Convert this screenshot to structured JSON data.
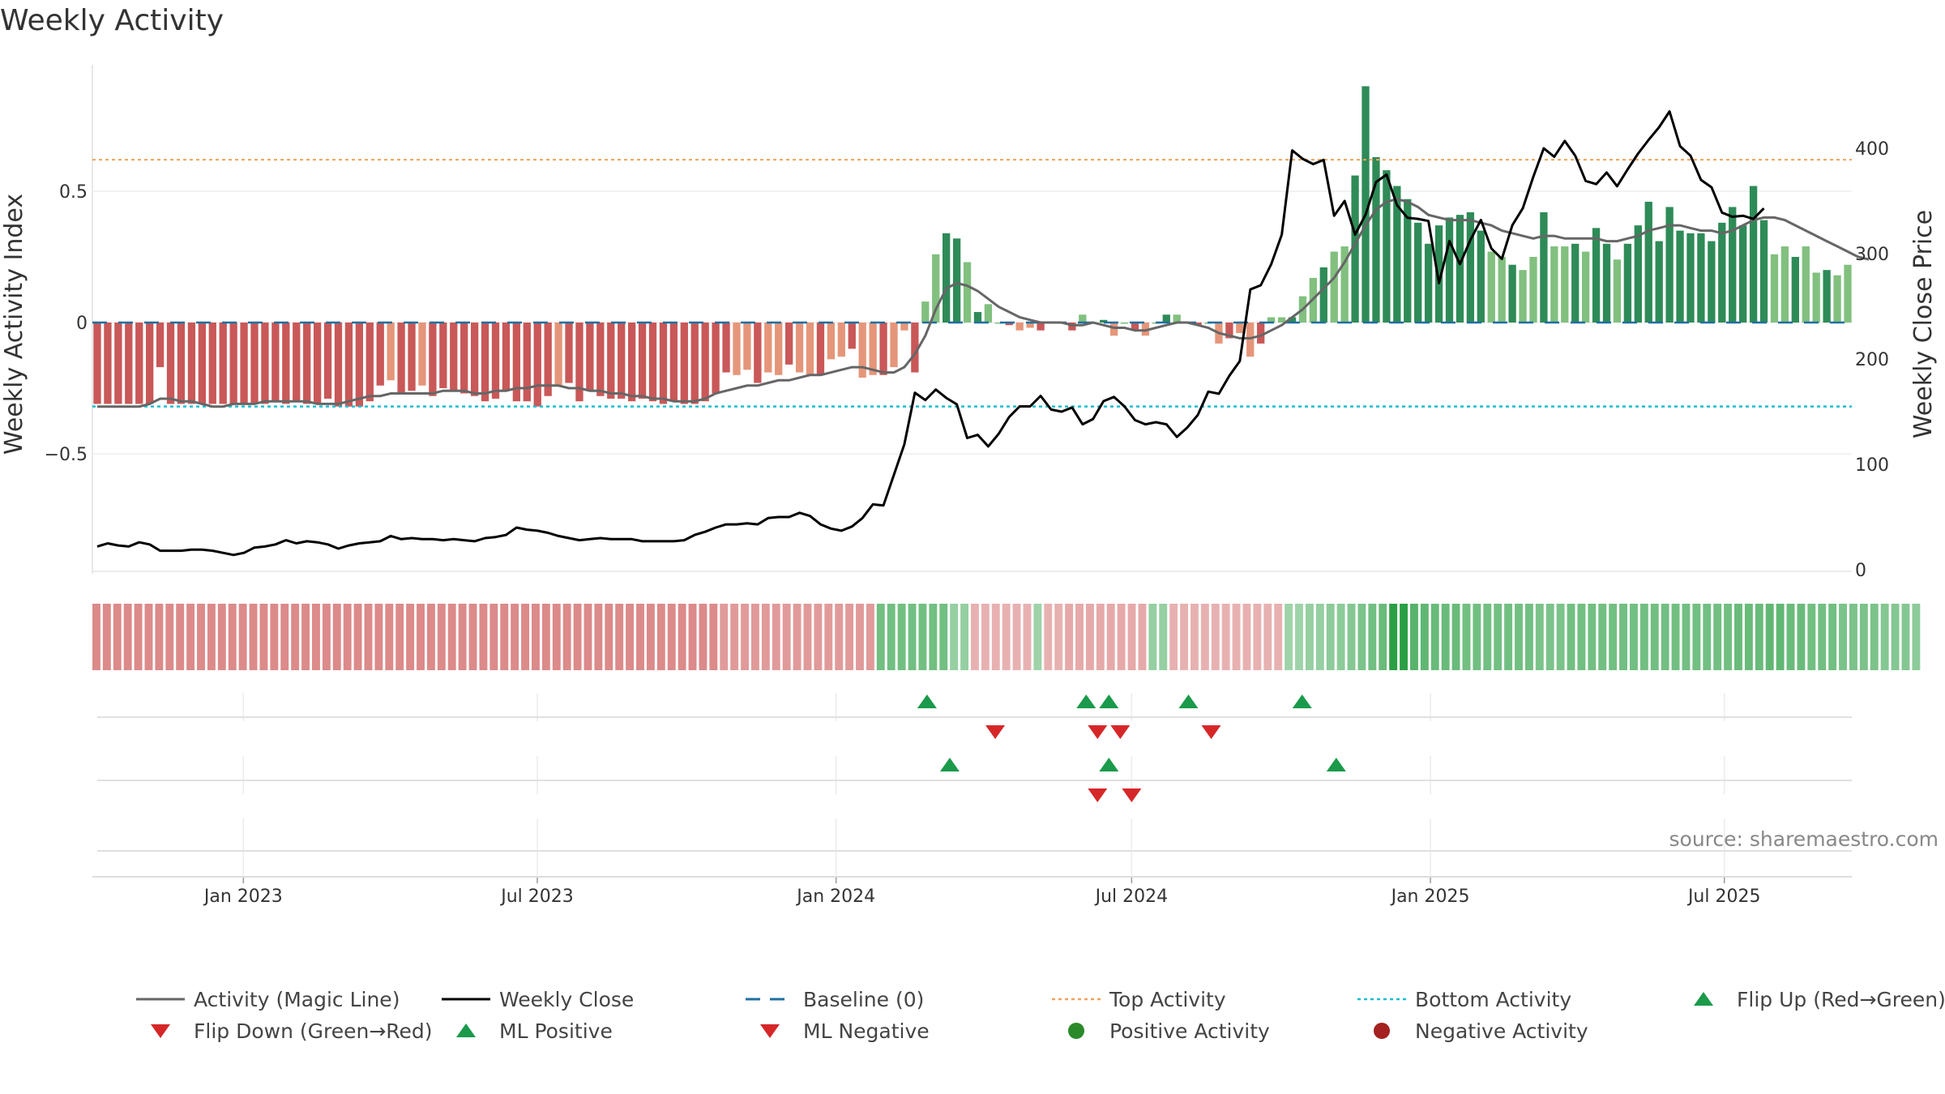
{
  "chart_data": {
    "type": "bar",
    "title": "Weekly Activity",
    "source": "source: sharemaestro.com",
    "y_left": {
      "label": "Weekly Activity Index",
      "ticks": [
        -0.5,
        0,
        0.5
      ],
      "tick_labels": [
        "−0.5",
        "0",
        "0.5"
      ],
      "range": [
        -0.93,
        0.9
      ]
    },
    "y_right": {
      "label": "Weekly Close Price",
      "ticks": [
        0,
        100,
        200,
        300,
        400
      ],
      "tick_labels": [
        "0",
        "100",
        "200",
        "300",
        "400"
      ],
      "range": [
        0,
        460
      ]
    },
    "x_axis": {
      "start": "2022-10-03",
      "end": "2025-09-15",
      "ticks": [
        "2023-01-01",
        "2023-07-01",
        "2024-01-01",
        "2024-07-01",
        "2025-01-01",
        "2025-07-01"
      ],
      "tick_labels": [
        "Jan 2023",
        "Jul 2023",
        "Jan 2024",
        "Jul 2024",
        "Jan 2025",
        "Jul 2025"
      ]
    },
    "reference_lines": {
      "top_activity": 0.62,
      "bottom_activity": -0.32,
      "baseline": 0
    },
    "activity": [
      -0.31,
      -0.31,
      -0.31,
      -0.31,
      -0.31,
      -0.31,
      -0.17,
      -0.31,
      -0.31,
      -0.31,
      -0.31,
      -0.31,
      -0.31,
      -0.31,
      -0.31,
      -0.31,
      -0.31,
      -0.3,
      -0.31,
      -0.3,
      -0.31,
      -0.31,
      -0.29,
      -0.32,
      -0.32,
      -0.32,
      -0.3,
      -0.24,
      -0.22,
      -0.27,
      -0.26,
      -0.24,
      -0.28,
      -0.25,
      -0.26,
      -0.27,
      -0.28,
      -0.3,
      -0.29,
      -0.26,
      -0.3,
      -0.3,
      -0.32,
      -0.28,
      -0.24,
      -0.23,
      -0.3,
      -0.26,
      -0.28,
      -0.29,
      -0.29,
      -0.3,
      -0.29,
      -0.3,
      -0.31,
      -0.3,
      -0.31,
      -0.31,
      -0.3,
      -0.27,
      -0.19,
      -0.2,
      -0.18,
      -0.23,
      -0.19,
      -0.2,
      -0.16,
      -0.19,
      -0.2,
      -0.2,
      -0.14,
      -0.13,
      -0.1,
      -0.21,
      -0.2,
      -0.2,
      -0.17,
      -0.03,
      -0.19,
      0.08,
      0.26,
      0.34,
      0.32,
      0.23,
      0.04,
      0.07,
      0.0,
      -0.01,
      -0.03,
      -0.02,
      -0.03,
      0.0,
      0.0,
      -0.03,
      0.03,
      0.0,
      0.01,
      -0.05,
      0.0,
      -0.03,
      -0.05,
      0.0,
      0.03,
      0.03,
      0.0,
      -0.01,
      0.0,
      -0.08,
      -0.06,
      -0.04,
      -0.13,
      -0.08,
      0.02,
      0.02,
      0.02,
      0.1,
      0.17,
      0.21,
      0.27,
      0.29,
      0.56,
      0.9,
      0.63,
      0.58,
      0.52,
      0.47,
      0.38,
      0.3,
      0.37,
      0.4,
      0.41,
      0.42,
      0.35,
      0.27,
      0.25,
      0.22,
      0.2,
      0.25,
      0.42,
      0.29,
      0.29,
      0.3,
      0.27,
      0.36,
      0.3,
      0.24,
      0.3,
      0.37,
      0.46,
      0.31,
      0.44,
      0.35,
      0.34,
      0.34,
      0.31,
      0.38,
      0.44,
      0.37,
      0.52,
      0.39,
      0.26,
      0.29,
      0.25,
      0.29,
      0.19,
      0.2,
      0.18,
      0.22
    ],
    "magic_line": [
      -0.32,
      -0.32,
      -0.32,
      -0.32,
      -0.32,
      -0.31,
      -0.29,
      -0.29,
      -0.3,
      -0.3,
      -0.31,
      -0.32,
      -0.32,
      -0.31,
      -0.31,
      -0.31,
      -0.3,
      -0.3,
      -0.3,
      -0.3,
      -0.3,
      -0.31,
      -0.31,
      -0.31,
      -0.3,
      -0.29,
      -0.28,
      -0.28,
      -0.27,
      -0.27,
      -0.27,
      -0.27,
      -0.27,
      -0.26,
      -0.26,
      -0.26,
      -0.27,
      -0.27,
      -0.26,
      -0.26,
      -0.25,
      -0.25,
      -0.24,
      -0.24,
      -0.24,
      -0.25,
      -0.25,
      -0.26,
      -0.26,
      -0.27,
      -0.27,
      -0.28,
      -0.28,
      -0.29,
      -0.29,
      -0.3,
      -0.3,
      -0.3,
      -0.29,
      -0.27,
      -0.26,
      -0.25,
      -0.24,
      -0.24,
      -0.23,
      -0.22,
      -0.22,
      -0.21,
      -0.2,
      -0.2,
      -0.19,
      -0.18,
      -0.17,
      -0.17,
      -0.18,
      -0.19,
      -0.19,
      -0.17,
      -0.12,
      -0.05,
      0.05,
      0.13,
      0.15,
      0.14,
      0.12,
      0.09,
      0.06,
      0.04,
      0.02,
      0.01,
      0.0,
      0.0,
      0.0,
      -0.01,
      -0.01,
      0.0,
      -0.01,
      -0.02,
      -0.02,
      -0.03,
      -0.03,
      -0.02,
      -0.01,
      0.0,
      0.0,
      -0.01,
      -0.02,
      -0.04,
      -0.05,
      -0.06,
      -0.06,
      -0.05,
      -0.03,
      -0.01,
      0.02,
      0.05,
      0.09,
      0.13,
      0.17,
      0.23,
      0.3,
      0.37,
      0.43,
      0.46,
      0.47,
      0.46,
      0.44,
      0.41,
      0.4,
      0.39,
      0.39,
      0.39,
      0.38,
      0.37,
      0.35,
      0.34,
      0.33,
      0.32,
      0.33,
      0.33,
      0.32,
      0.32,
      0.32,
      0.32,
      0.31,
      0.31,
      0.32,
      0.33,
      0.35,
      0.36,
      0.37,
      0.37,
      0.36,
      0.35,
      0.35,
      0.34,
      0.35,
      0.37,
      0.39,
      0.4,
      0.4,
      0.39,
      0.37,
      0.35,
      0.33,
      0.31,
      0.29,
      0.27,
      0.25,
      0.24
    ],
    "close": [
      22,
      25,
      23,
      22,
      26,
      24,
      18,
      18,
      18,
      19,
      19,
      18,
      16,
      14,
      16,
      21,
      22,
      24,
      28,
      25,
      27,
      26,
      24,
      20,
      23,
      25,
      26,
      27,
      32,
      29,
      30,
      29,
      29,
      28,
      29,
      28,
      27,
      30,
      31,
      33,
      40,
      38,
      37,
      35,
      32,
      30,
      28,
      29,
      30,
      29,
      29,
      29,
      27,
      27,
      27,
      27,
      28,
      33,
      36,
      40,
      43,
      43,
      44,
      43,
      49,
      50,
      50,
      54,
      51,
      43,
      39,
      37,
      41,
      49,
      62,
      61,
      90,
      119,
      168,
      161,
      171,
      163,
      157,
      125,
      128,
      117,
      129,
      145,
      155,
      155,
      165,
      152,
      150,
      154,
      138,
      143,
      160,
      164,
      155,
      142,
      138,
      140,
      138,
      126,
      135,
      147,
      169,
      167,
      184,
      198,
      266,
      270,
      290,
      318,
      398,
      390,
      385,
      389,
      336,
      350,
      318,
      337,
      368,
      375,
      346,
      334,
      333,
      331,
      272,
      312,
      290,
      313,
      332,
      305,
      295,
      327,
      343,
      373,
      400,
      392,
      407,
      393,
      369,
      366,
      377,
      364,
      380,
      395,
      408,
      420,
      435,
      402,
      393,
      370,
      363,
      339,
      335,
      336,
      333,
      343
    ],
    "color_band": [
      -0.45,
      -0.45,
      -0.45,
      -0.45,
      -0.45,
      -0.45,
      -0.45,
      -0.45,
      -0.45,
      -0.45,
      -0.45,
      -0.45,
      -0.45,
      -0.45,
      -0.45,
      -0.45,
      -0.45,
      -0.45,
      -0.45,
      -0.45,
      -0.45,
      -0.45,
      -0.45,
      -0.45,
      -0.45,
      -0.45,
      -0.45,
      -0.45,
      -0.45,
      -0.45,
      -0.45,
      -0.45,
      -0.45,
      -0.45,
      -0.45,
      -0.45,
      -0.45,
      -0.45,
      -0.45,
      -0.45,
      -0.45,
      -0.45,
      -0.45,
      -0.45,
      -0.45,
      -0.45,
      -0.45,
      -0.45,
      -0.45,
      -0.45,
      -0.45,
      -0.45,
      -0.45,
      -0.45,
      -0.45,
      -0.45,
      -0.45,
      -0.45,
      -0.45,
      -0.45,
      -0.35,
      -0.35,
      -0.35,
      -0.35,
      -0.35,
      -0.35,
      -0.35,
      -0.35,
      -0.35,
      -0.35,
      -0.35,
      -0.35,
      -0.35,
      -0.35,
      -0.35,
      0.5,
      0.5,
      0.5,
      0.5,
      0.5,
      0.5,
      0.5,
      0.3,
      0.3,
      -0.2,
      -0.2,
      -0.2,
      -0.2,
      -0.2,
      -0.2,
      0.25,
      -0.2,
      -0.2,
      -0.25,
      -0.25,
      -0.25,
      -0.25,
      -0.25,
      -0.25,
      -0.25,
      -0.25,
      0.3,
      0.3,
      -0.2,
      -0.2,
      -0.2,
      -0.2,
      -0.2,
      -0.2,
      -0.2,
      -0.2,
      -0.2,
      -0.2,
      -0.2,
      0.25,
      0.25,
      0.3,
      0.3,
      0.35,
      0.35,
      0.4,
      0.45,
      0.5,
      0.55,
      0.9,
      0.9,
      0.65,
      0.6,
      0.55,
      0.55,
      0.55,
      0.5,
      0.5,
      0.5,
      0.5,
      0.5,
      0.5,
      0.5,
      0.45,
      0.45,
      0.45,
      0.5,
      0.5,
      0.5,
      0.5,
      0.5,
      0.5,
      0.5,
      0.5,
      0.5,
      0.5,
      0.5,
      0.5,
      0.5,
      0.5,
      0.5,
      0.5,
      0.55,
      0.55,
      0.55,
      0.6,
      0.6,
      0.55,
      0.55,
      0.5,
      0.5,
      0.5,
      0.45,
      0.45,
      0.45,
      0.45,
      0.4,
      0.4,
      0.4,
      0.35
    ],
    "flip_up": [
      "2024-02-26",
      "2024-06-03",
      "2024-06-17",
      "2024-08-05",
      "2024-10-14"
    ],
    "flip_down": [
      "2024-04-08",
      "2024-06-10",
      "2024-06-24",
      "2024-08-19"
    ],
    "ml_positive": [
      "2024-03-11",
      "2024-06-17",
      "2024-11-04"
    ],
    "ml_negative": [
      "2024-06-10",
      "2024-07-01"
    ],
    "legend": [
      {
        "label": "Activity (Magic Line)",
        "marker": "line",
        "color": "#666666"
      },
      {
        "label": "Weekly Close",
        "marker": "line",
        "color": "#000000"
      },
      {
        "label": "Baseline (0)",
        "marker": "dash",
        "color": "#1f6fa0"
      },
      {
        "label": "Top Activity",
        "marker": "dot-line",
        "color": "#f0a35a"
      },
      {
        "label": "Bottom Activity",
        "marker": "dot-line",
        "color": "#17becf"
      },
      {
        "label": "Flip Up (Red→Green)",
        "marker": "triangle-up",
        "color": "#1a9a4a"
      },
      {
        "label": "Flip Down (Green→Red)",
        "marker": "triangle-down",
        "color": "#d62728"
      },
      {
        "label": "ML Positive",
        "marker": "triangle-up",
        "color": "#1a9a4a"
      },
      {
        "label": "ML Negative",
        "marker": "triangle-down",
        "color": "#d62728"
      },
      {
        "label": "Positive Activity",
        "marker": "circle",
        "color": "#2a8a2a"
      },
      {
        "label": "Negative Activity",
        "marker": "circle",
        "color": "#a52020"
      }
    ],
    "colors": {
      "pos_dark": "#2e8b57",
      "pos_light": "#82c07f",
      "neg_dark": "#c95858",
      "neg_light": "#e5967a",
      "magic": "#666666",
      "close": "#000000",
      "top": "#f0a35a",
      "bottom": "#17becf",
      "baseline": "#1f6fa0"
    }
  }
}
